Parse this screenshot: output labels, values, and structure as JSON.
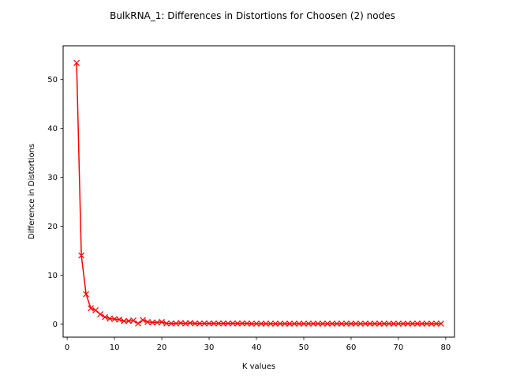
{
  "chart_data": {
    "type": "line",
    "title": "BulkRNA_1: Differences in Distortions for Choosen (2) nodes",
    "xlabel": "K values",
    "ylabel": "Difference in Distortions",
    "xlim": [
      -0.85,
      81.85
    ],
    "ylim": [
      -2.7,
      56.9
    ],
    "xticks": [
      0,
      10,
      20,
      30,
      40,
      50,
      60,
      70,
      80
    ],
    "yticks": [
      0,
      10,
      20,
      30,
      40,
      50
    ],
    "grid": false,
    "legend": "none",
    "marker": "x",
    "line_color": "#ff0000",
    "series": [
      {
        "x": [
          2,
          3,
          4,
          5,
          6,
          7,
          8,
          9,
          10,
          11,
          12,
          13,
          14,
          15,
          16,
          17,
          18,
          19,
          20,
          21,
          22,
          23,
          24,
          25,
          26,
          27,
          28,
          29,
          30,
          31,
          32,
          33,
          34,
          35,
          36,
          37,
          38,
          39,
          40,
          41,
          42,
          43,
          44,
          45,
          46,
          47,
          48,
          49,
          50,
          51,
          52,
          53,
          54,
          55,
          56,
          57,
          58,
          59,
          60,
          61,
          62,
          63,
          64,
          65,
          66,
          67,
          68,
          69,
          70,
          71,
          72,
          73,
          74,
          75,
          76,
          77,
          78,
          79
        ],
        "values": [
          53.4,
          14.0,
          6.1,
          3.2,
          2.8,
          2.0,
          1.4,
          1.1,
          1.0,
          0.9,
          0.6,
          0.6,
          0.7,
          0.1,
          0.8,
          0.4,
          0.3,
          0.3,
          0.4,
          0.1,
          0.1,
          0.1,
          0.2,
          0.1,
          0.2,
          0.1,
          0.1,
          0.1,
          0.1,
          0.1,
          0.1,
          0.1,
          0.1,
          0.1,
          0.1,
          0.1,
          0.1,
          0.05,
          0.05,
          0.05,
          0.05,
          0.05,
          0.05,
          0.05,
          0.05,
          0.05,
          0.05,
          0.05,
          0.05,
          0.05,
          0.05,
          0.05,
          0.05,
          0.05,
          0.05,
          0.05,
          0.05,
          0.05,
          0.05,
          0.05,
          0.05,
          0.05,
          0.05,
          0.05,
          0.05,
          0.05,
          0.05,
          0.05,
          0.05,
          0.05,
          0.05,
          0.05,
          0.05,
          0.05,
          0.05,
          0.05,
          0.05,
          0.05
        ]
      }
    ]
  }
}
